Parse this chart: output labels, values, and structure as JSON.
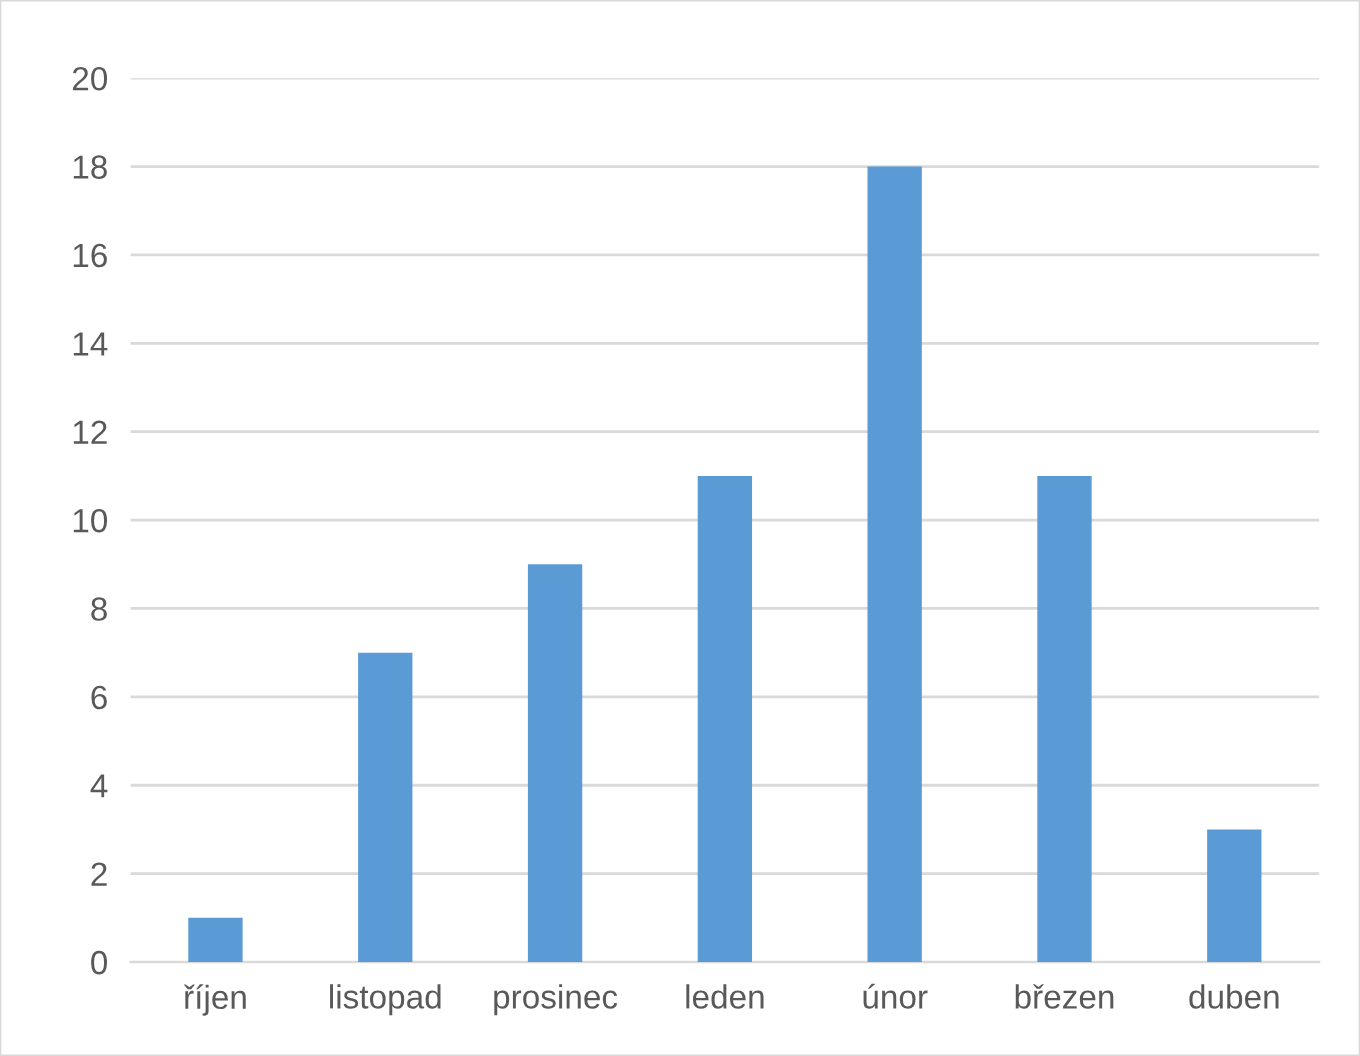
{
  "chart_data": {
    "type": "bar",
    "categories": [
      "říjen",
      "listopad",
      "prosinec",
      "leden",
      "únor",
      "březen",
      "duben"
    ],
    "values": [
      1,
      7,
      9,
      11,
      18,
      11,
      3
    ],
    "color": "#5b9bd5",
    "ylim": [
      0,
      20
    ],
    "yticks": [
      0,
      2,
      4,
      6,
      8,
      10,
      12,
      14,
      16,
      18,
      20
    ],
    "grid": "y"
  }
}
